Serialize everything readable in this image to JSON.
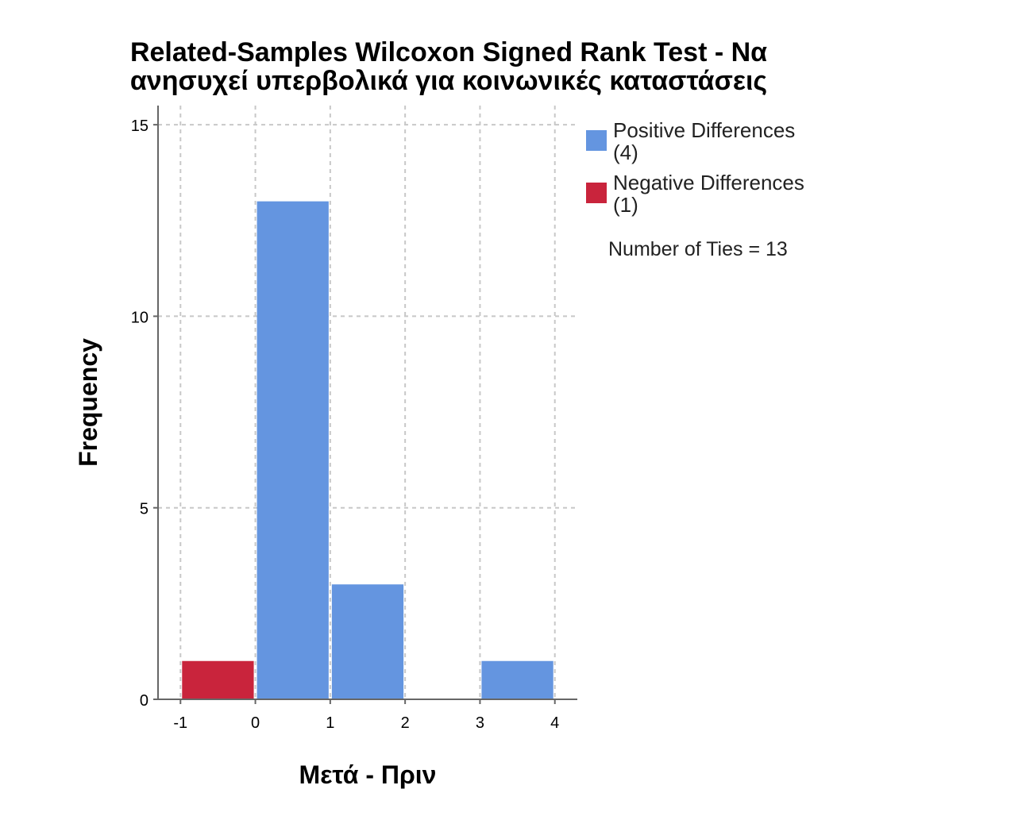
{
  "title_line1": "Related-Samples Wilcoxon Signed Rank Test - Να",
  "title_line2": "ανησυχεί υπερβολικά για κοινωνικές καταστάσεις",
  "ties_text": "Number of Ties = 13",
  "legend": [
    {
      "label": "Positive Differences",
      "count": "(4)",
      "color": "#6495e0"
    },
    {
      "label": "Negative Differences",
      "count": "(1)",
      "color": "#c9243c"
    }
  ],
  "chart_data": {
    "type": "bar",
    "title": "Related-Samples Wilcoxon Signed Rank Test - Να ανησυχεί υπερβολικά για κοινωνικές καταστάσεις",
    "xlabel": "Μετά - Πριν",
    "ylabel": "Frequency",
    "xlim": [
      -1.3,
      4.3
    ],
    "ylim": [
      0,
      15.5
    ],
    "xticks": [
      -1,
      0,
      1,
      2,
      3,
      4
    ],
    "yticks": [
      0,
      5,
      10,
      15
    ],
    "grid": true,
    "legend_position": "right",
    "bins": [
      {
        "x0": -1,
        "x1": 0,
        "value": 1,
        "series": "Negative Differences"
      },
      {
        "x0": 0,
        "x1": 1,
        "value": 13,
        "series": "Positive Differences"
      },
      {
        "x0": 1,
        "x1": 2,
        "value": 3,
        "series": "Positive Differences"
      },
      {
        "x0": 2,
        "x1": 3,
        "value": 0,
        "series": "Positive Differences"
      },
      {
        "x0": 3,
        "x1": 4,
        "value": 1,
        "series": "Positive Differences"
      }
    ],
    "series": [
      {
        "name": "Positive Differences",
        "color": "#6495e0"
      },
      {
        "name": "Negative Differences",
        "color": "#c9243c"
      }
    ]
  }
}
